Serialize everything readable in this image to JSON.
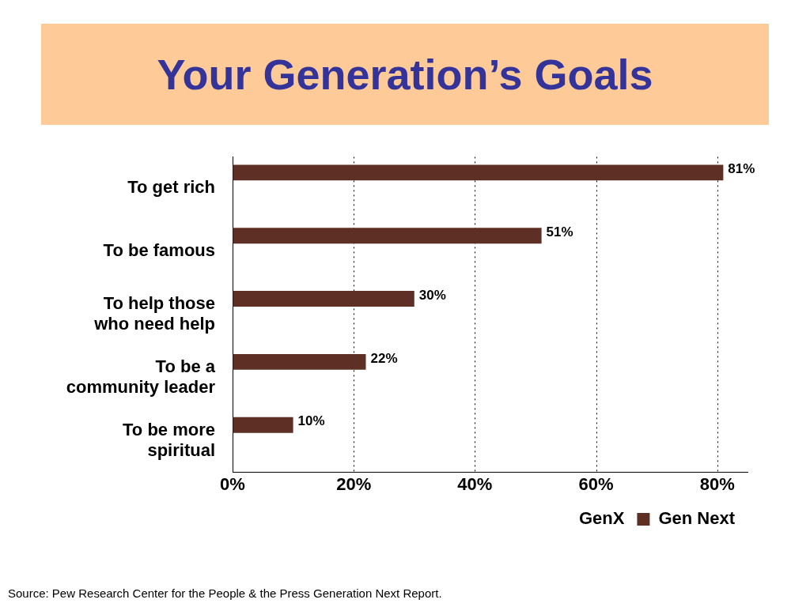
{
  "chart_data": {
    "type": "bar",
    "orientation": "horizontal",
    "title": "Your Generation’s Goals",
    "categories": [
      "To get rich",
      "To be famous",
      "To help those who need help",
      "To be a community leader",
      "To be more spiritual"
    ],
    "series": [
      {
        "name": "GenX",
        "values": [
          null,
          null,
          null,
          null,
          null
        ]
      },
      {
        "name": "Gen Next",
        "color": "#5e2f24",
        "values": [
          81,
          51,
          30,
          22,
          10
        ],
        "value_labels": [
          "81%",
          "51%",
          "30%",
          "22%",
          "10%"
        ]
      }
    ],
    "xlim": [
      0,
      85
    ],
    "xticks": [
      {
        "value": 0,
        "label": "0%"
      },
      {
        "value": 20,
        "label": "20%"
      },
      {
        "value": 40,
        "label": "40%"
      },
      {
        "value": 60,
        "label": "60%"
      },
      {
        "value": 80,
        "label": "80%"
      }
    ],
    "grid": "x",
    "legend": "bottom",
    "annotations": [
      "Source:  Pew Research Center for the People & the Press Generation Next Report."
    ]
  }
}
